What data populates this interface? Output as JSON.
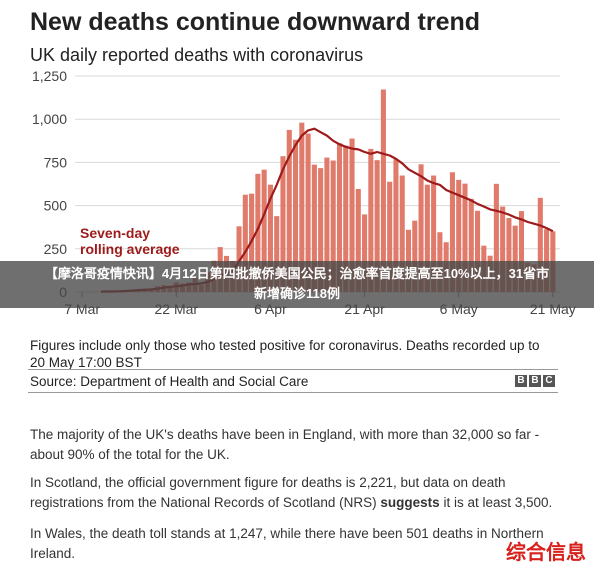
{
  "headline": "New deaths continue downward trend",
  "subtitle": "UK daily reported deaths with coronavirus",
  "chart_data": {
    "type": "bar",
    "ylim": [
      0,
      1250
    ],
    "yticks": [
      0,
      250,
      500,
      750,
      1000,
      1250
    ],
    "ytick_labels": [
      "0",
      "250",
      "500",
      "750",
      "1,000",
      "1,250"
    ],
    "xtick_labels": [
      "7 Mar",
      "22 Mar",
      "6 Apr",
      "21 Apr",
      "6 May",
      "21 May"
    ],
    "xtick_index": [
      0,
      15,
      30,
      45,
      60,
      75
    ],
    "grid": true,
    "bar_color": "#e07a6b",
    "line_color": "#9e1b1b",
    "annotation": "Seven-day rolling average",
    "values": [
      1,
      1,
      2,
      2,
      3,
      5,
      6,
      5,
      10,
      14,
      20,
      16,
      33,
      40,
      33,
      56,
      48,
      54,
      87,
      41,
      115,
      181,
      260,
      209,
      180,
      380,
      563,
      569,
      684,
      708,
      621,
      439,
      786,
      938,
      881,
      980,
      917,
      737,
      717,
      778,
      761,
      861,
      847,
      888,
      596,
      449,
      828,
      763,
      1172,
      638,
      768,
      674,
      360,
      413,
      739,
      621,
      674,
      346,
      288,
      693,
      649,
      627,
      539,
      470,
      268,
      210,
      626,
      494,
      428,
      384,
      468,
      170,
      160,
      545,
      363,
      351
    ],
    "rolling_average": [
      null,
      null,
      null,
      2,
      3,
      3,
      4,
      6,
      8,
      11,
      13,
      15,
      19,
      25,
      30,
      33,
      37,
      44,
      46,
      50,
      58,
      74,
      93,
      110,
      125,
      177,
      232,
      295,
      366,
      450,
      540,
      620,
      710,
      785,
      850,
      905,
      935,
      945,
      925,
      905,
      875,
      855,
      840,
      830,
      825,
      810,
      800,
      810,
      800,
      790,
      770,
      745,
      710,
      690,
      670,
      645,
      630,
      620,
      590,
      575,
      560,
      545,
      530,
      510,
      495,
      478,
      470,
      460,
      448,
      432,
      420,
      405,
      395,
      385,
      370,
      352
    ]
  },
  "note": "Figures include only those who tested positive for coronavirus. Deaths recorded up to 20 May 17:00 BST",
  "source": "Source: Department of Health and Social Care",
  "bbc_letters": [
    "B",
    "B",
    "C"
  ],
  "banner": {
    "line1": "【摩洛哥疫情快讯】4月12日第四批撤侨美国公民；治愈率首度提高至10%以上，31省市",
    "line2": "新增确诊118例"
  },
  "para1": "The majority of the UK's deaths have been in England, with more than 32,000 so far - about 90% of the total for the UK.",
  "para2_start": "In Scotland, the official government figure for deaths is 2,221, but data on death registrations from the National Records of Scotland (NRS) ",
  "para2_bold": "suggests",
  "para2_end": " it is at least 3,500.",
  "para3": "In Wales, the death toll stands at 1,247, while there have been 501 deaths in Northern Ireland.",
  "watermark": "综合信息"
}
